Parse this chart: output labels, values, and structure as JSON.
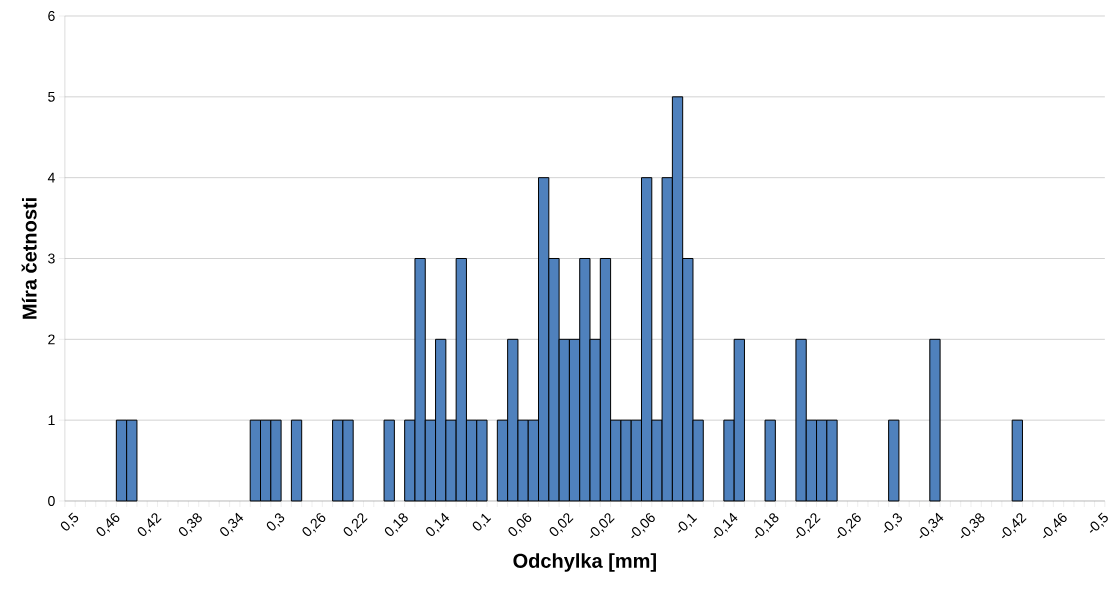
{
  "chart_data": {
    "type": "bar",
    "xlabel": "Odchylka [mm]",
    "ylabel": "Míra četnosti",
    "categories": [
      "0,5",
      null,
      null,
      null,
      "0,46",
      null,
      null,
      null,
      "0,42",
      null,
      null,
      null,
      "0,38",
      null,
      null,
      null,
      "0,34",
      null,
      null,
      null,
      "0,3",
      null,
      null,
      null,
      "0,26",
      null,
      null,
      null,
      "0,22",
      null,
      null,
      null,
      "0,18",
      null,
      null,
      null,
      "0,14",
      null,
      null,
      null,
      "0,1",
      null,
      null,
      null,
      "0,06",
      null,
      null,
      null,
      "0,02",
      null,
      null,
      null,
      "-0,02",
      null,
      null,
      null,
      "-0,06",
      null,
      null,
      null,
      "-0,1",
      null,
      null,
      null,
      "-0,14",
      null,
      null,
      null,
      "-0,18",
      null,
      null,
      null,
      "-0,22",
      null,
      null,
      null,
      "-0,26",
      null,
      null,
      null,
      "-0,3",
      null,
      null,
      null,
      "-0,34",
      null,
      null,
      null,
      "-0,38",
      null,
      null,
      null,
      "-0,42",
      null,
      null,
      null,
      "-0,46",
      null,
      null,
      null,
      "-0,5"
    ],
    "values": [
      0,
      0,
      0,
      0,
      0,
      1,
      1,
      0,
      0,
      0,
      0,
      0,
      0,
      0,
      0,
      0,
      0,
      0,
      1,
      1,
      1,
      0,
      1,
      0,
      0,
      0,
      1,
      1,
      0,
      0,
      0,
      1,
      0,
      1,
      3,
      1,
      2,
      1,
      3,
      1,
      1,
      0,
      1,
      2,
      1,
      1,
      4,
      3,
      2,
      2,
      3,
      2,
      3,
      1,
      1,
      1,
      4,
      1,
      4,
      5,
      3,
      1,
      0,
      0,
      1,
      2,
      0,
      0,
      1,
      0,
      0,
      2,
      1,
      1,
      1,
      0,
      0,
      0,
      0,
      0,
      1,
      0,
      0,
      0,
      2,
      0,
      0,
      0,
      0,
      0,
      0,
      0,
      1,
      0,
      0,
      0,
      0,
      0,
      0,
      0,
      0
    ],
    "color": "#4f81bd",
    "ylim": [
      0,
      6
    ],
    "yticks": [
      0,
      1,
      2,
      3,
      4,
      5,
      6
    ],
    "grid": "y"
  }
}
